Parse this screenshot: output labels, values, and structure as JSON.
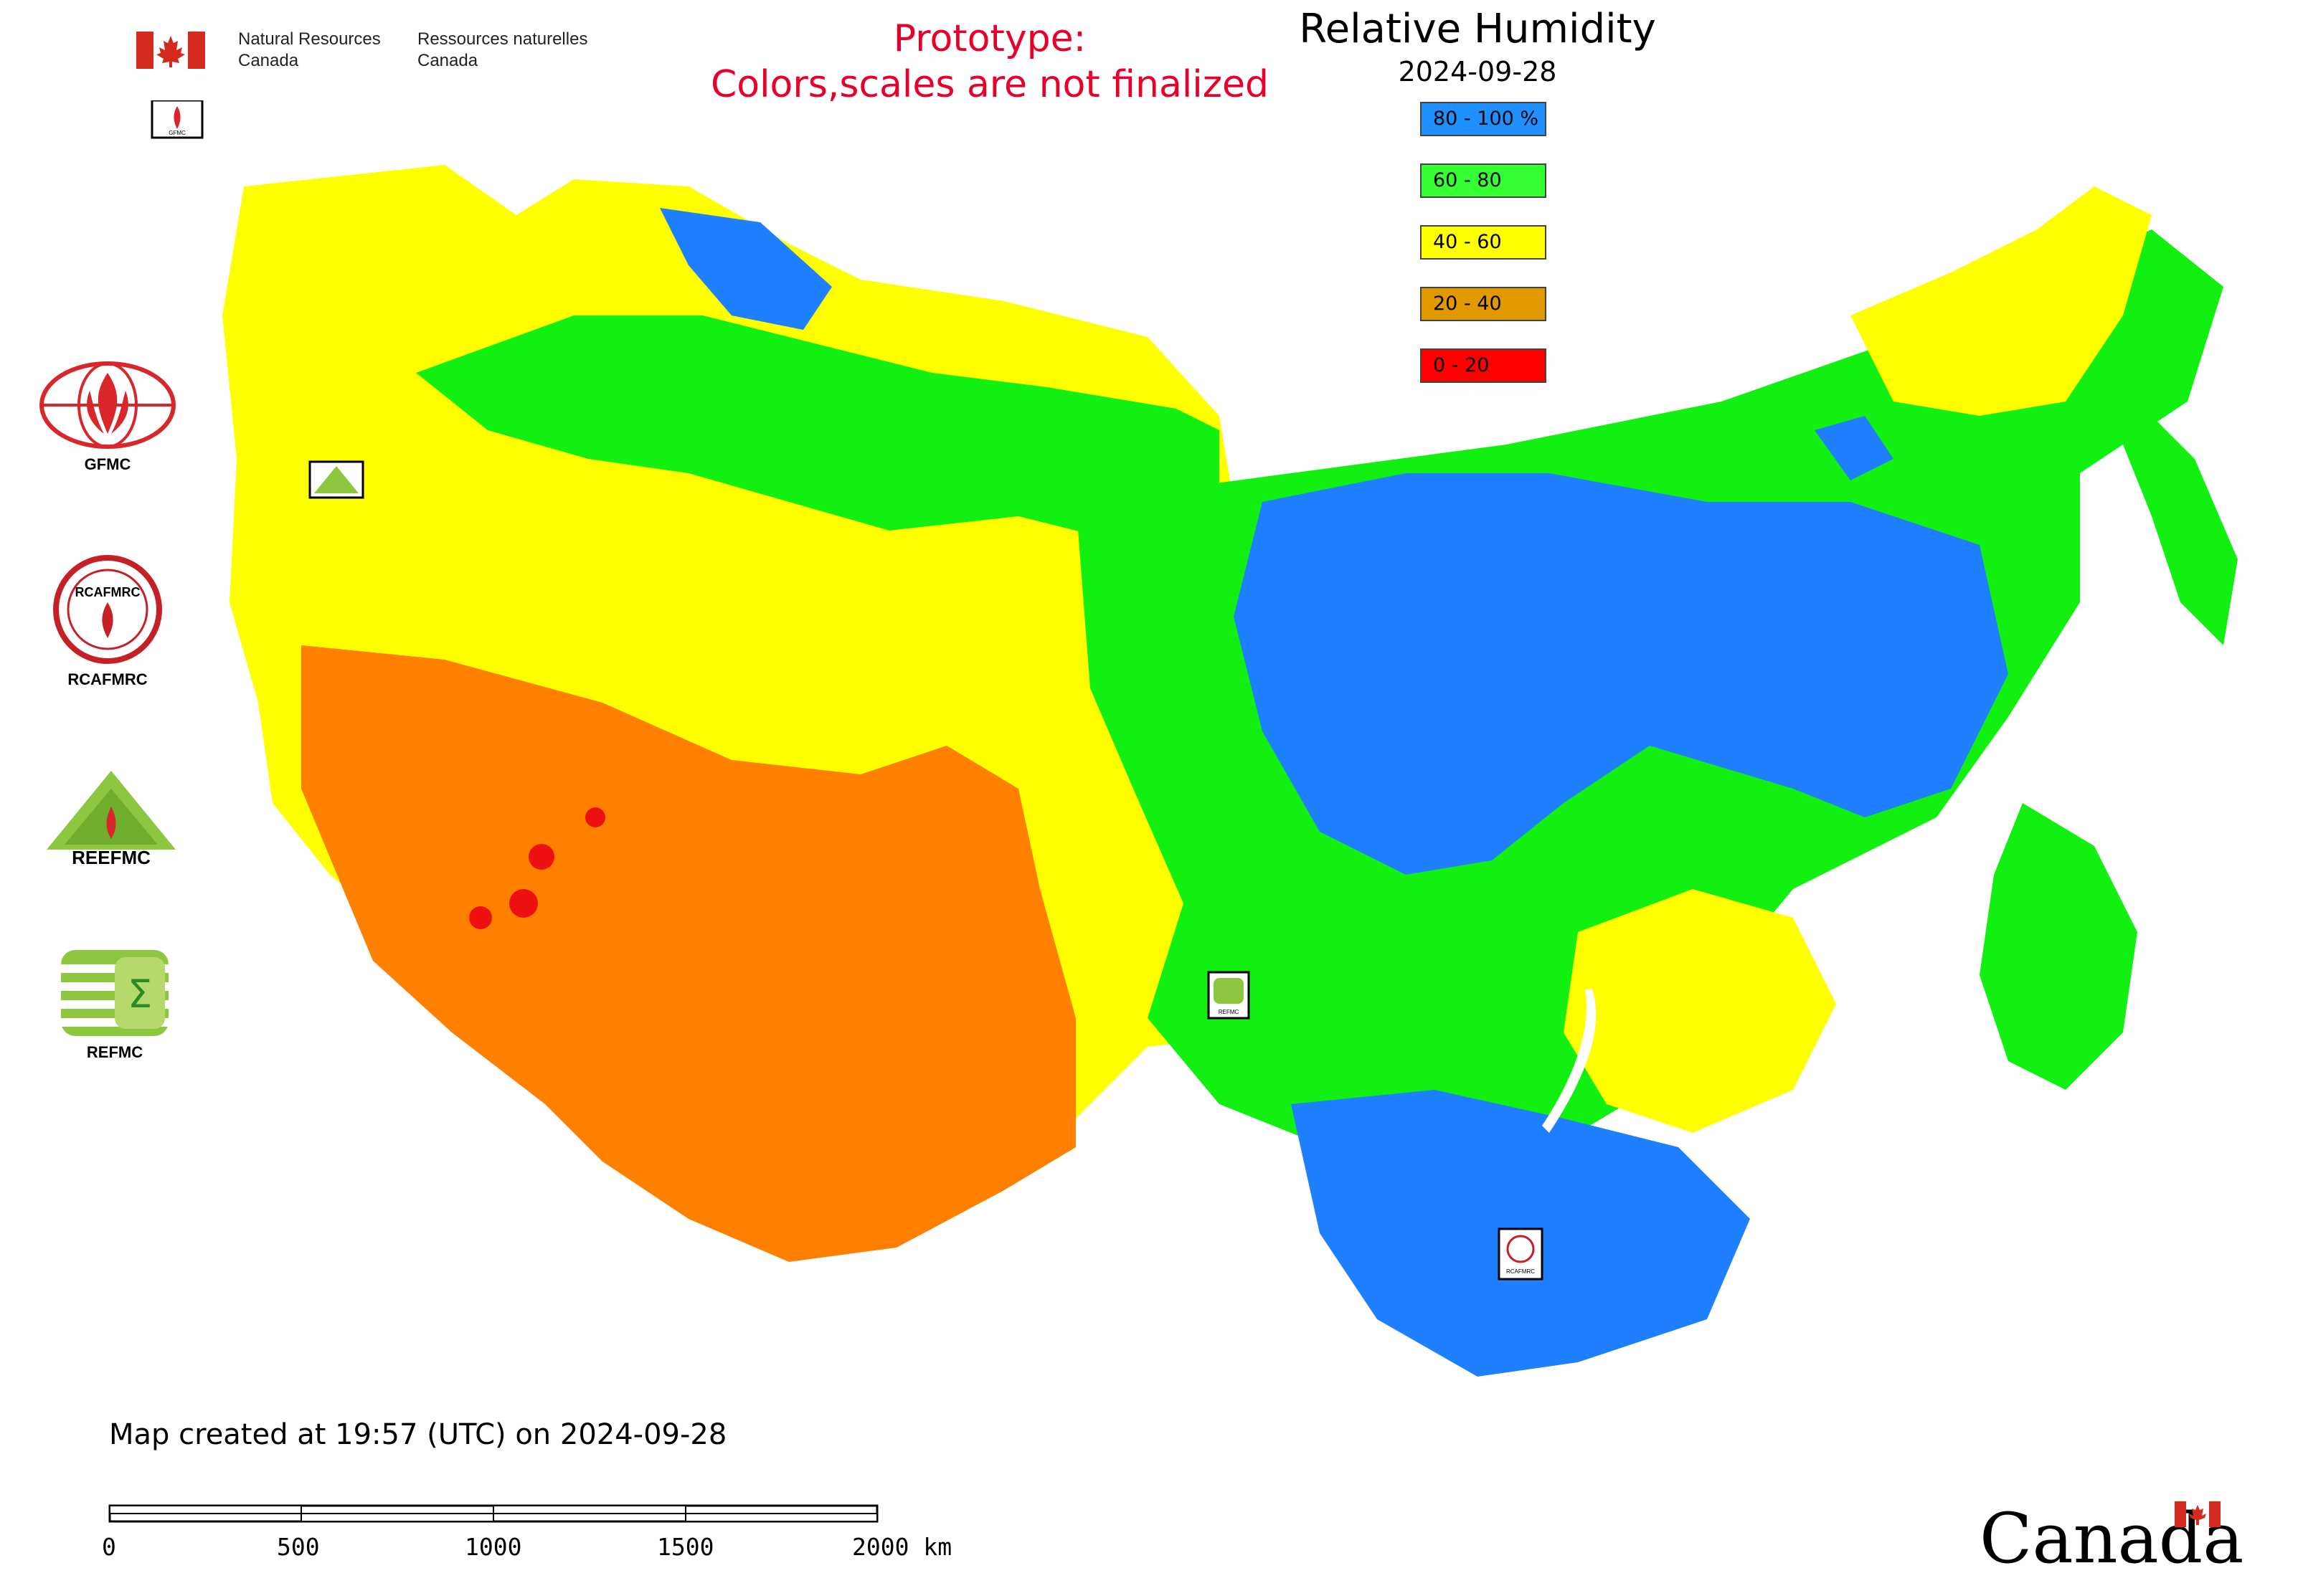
{
  "header": {
    "agency_en_line1": "Natural Resources",
    "agency_en_line2": "Canada",
    "agency_fr_line1": "Ressources naturelles",
    "agency_fr_line2": "Canada",
    "prototype_line1": "Prototype:",
    "prototype_line2": "Colors,scales are not finalized"
  },
  "map": {
    "title": "Relative Humidity",
    "date": "2024-09-28",
    "legend": [
      {
        "label": "80 - 100 %",
        "color": "#1e90ff"
      },
      {
        "label": "60 - 80",
        "color": "#33ff33"
      },
      {
        "label": "40 - 60",
        "color": "#ffff00"
      },
      {
        "label": "20 - 40",
        "color": "#e09a00"
      },
      {
        "label": "0 - 20",
        "color": "#ff0000"
      }
    ],
    "region_colors": {
      "very_wet": "#1e7fff",
      "wet": "#11f011",
      "moderate": "#ffff00",
      "dry": "#ff8000",
      "very_dry": "#ee1111"
    },
    "station_labels": [
      "GFMC",
      "REFMC",
      "RCAFMRC",
      "REFMC"
    ]
  },
  "agencies": [
    {
      "label": "GFMC",
      "icon": "gfmc-logo-icon"
    },
    {
      "label": "RCAFMRC",
      "icon": "rcafmrc-logo-icon"
    },
    {
      "label": "REFMC",
      "icon": "reefmc-logo-icon"
    },
    {
      "label": "REFMC",
      "icon": "refmc-logo-icon"
    }
  ],
  "footer": {
    "created": "Map created at 19:57 (UTC) on 2024-09-28",
    "scale_ticks": [
      "0",
      "500",
      "1000",
      "1500",
      "2000 km"
    ],
    "wordmark": "Canada"
  }
}
